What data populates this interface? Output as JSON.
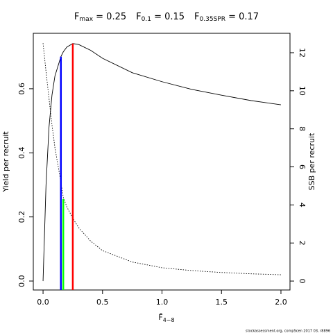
{
  "chart_data": {
    "type": "line",
    "title_parts": [
      {
        "main": "F",
        "sub": "max",
        "rest": " = 0.25"
      },
      {
        "main": "F",
        "sub": "0.1",
        "rest": " = 0.15"
      },
      {
        "main": "F",
        "sub": "0.35SPR",
        "rest": " = 0.17"
      }
    ],
    "x_label": {
      "main": "F̄",
      "sub": "4−8"
    },
    "y_label": "Yield per recruit",
    "y2_label": "SSB per recruit",
    "footer": "stockassessment.org, compScen 2017 03, r8896",
    "x": [
      0,
      0.025,
      0.05,
      0.075,
      0.1,
      0.15,
      0.17,
      0.2,
      0.25,
      0.3,
      0.4,
      0.5,
      0.75,
      1.0,
      1.25,
      1.5,
      1.75,
      2.0
    ],
    "series": [
      {
        "name": "Yield per recruit",
        "axis": "y",
        "color": "#000000",
        "dash": "none",
        "values": [
          0,
          0.3,
          0.48,
          0.58,
          0.64,
          0.7,
          0.715,
          0.73,
          0.741,
          0.738,
          0.72,
          0.695,
          0.65,
          0.622,
          0.598,
          0.58,
          0.563,
          0.55
        ]
      },
      {
        "name": "SSB per recruit",
        "axis": "y2",
        "color": "#000000",
        "dash": "1.5 2",
        "values": [
          12.5,
          11.0,
          9.6,
          8.2,
          7.0,
          5.2,
          4.4,
          3.9,
          3.3,
          2.8,
          2.1,
          1.6,
          1.0,
          0.7,
          0.55,
          0.45,
          0.38,
          0.33
        ]
      }
    ],
    "reference_lines": [
      {
        "x": 0.15,
        "y": 0.7,
        "color": "#0000ff"
      },
      {
        "x": 0.25,
        "y": 0.741,
        "color": "#ff0000"
      },
      {
        "x": 0.17,
        "y": 0.256,
        "color": "#00ff00"
      }
    ],
    "xlim": [
      -0.082,
      2.076
    ],
    "ylim": [
      -0.028,
      0.773
    ],
    "y2lim": [
      -0.47,
      13.02
    ],
    "xticks": [
      {
        "value": 0,
        "label": "0.0"
      },
      {
        "value": 0.5,
        "label": "0.5"
      },
      {
        "value": 1.0,
        "label": "1.0"
      },
      {
        "value": 1.5,
        "label": "1.5"
      },
      {
        "value": 2.0,
        "label": "2.0"
      }
    ],
    "yticks": [
      {
        "value": 0,
        "label": "0.0"
      },
      {
        "value": 0.2,
        "label": "0.2"
      },
      {
        "value": 0.4,
        "label": "0.4"
      },
      {
        "value": 0.6,
        "label": "0.6"
      }
    ],
    "y2ticks": [
      0,
      2,
      4,
      6,
      8,
      10,
      12
    ]
  }
}
